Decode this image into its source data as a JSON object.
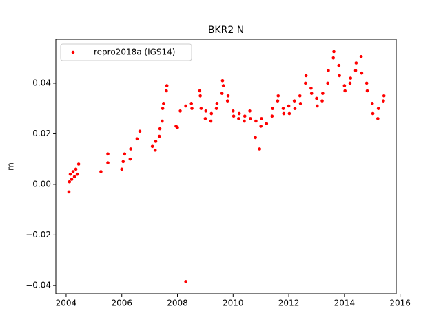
{
  "chart_data": {
    "type": "scatter",
    "title": "BKR2 N",
    "ylabel": "m",
    "x": [
      2004.1,
      2004.12,
      2004.15,
      2004.2,
      2004.25,
      2004.3,
      2004.35,
      2004.4,
      2004.45,
      2005.25,
      2005.5,
      2005.5,
      2006.0,
      2006.05,
      2006.1,
      2006.3,
      2006.32,
      2006.55,
      2006.65,
      2007.1,
      2007.2,
      2007.22,
      2007.35,
      2007.37,
      2007.45,
      2007.47,
      2007.5,
      2007.6,
      2007.62,
      2007.95,
      2008.0,
      2008.1,
      2008.3,
      2008.3,
      2008.5,
      2008.52,
      2008.8,
      2008.82,
      2008.85,
      2009.0,
      2009.02,
      2009.2,
      2009.22,
      2009.4,
      2009.42,
      2009.6,
      2009.62,
      2009.65,
      2009.8,
      2009.82,
      2010.0,
      2010.02,
      2010.2,
      2010.22,
      2010.4,
      2010.42,
      2010.6,
      2010.62,
      2010.8,
      2010.82,
      2010.95,
      2011.0,
      2011.02,
      2011.2,
      2011.4,
      2011.42,
      2011.6,
      2011.62,
      2011.8,
      2011.82,
      2012.0,
      2012.02,
      2012.2,
      2012.22,
      2012.4,
      2012.42,
      2012.6,
      2012.62,
      2012.8,
      2012.82,
      2013.0,
      2013.02,
      2013.2,
      2013.22,
      2013.4,
      2013.42,
      2013.6,
      2013.62,
      2013.8,
      2013.82,
      2014.0,
      2014.02,
      2014.2,
      2014.22,
      2014.4,
      2014.42,
      2014.6,
      2014.62,
      2014.8,
      2014.82,
      2015.0,
      2015.02,
      2015.2,
      2015.22,
      2015.4,
      2015.42
    ],
    "series": [
      {
        "name": "repro2018a (IGS14)",
        "color": "#ff0000",
        "values": [
          -0.003,
          0.001,
          0.004,
          0.002,
          0.005,
          0.003,
          0.006,
          0.004,
          0.008,
          0.005,
          0.0085,
          0.012,
          0.006,
          0.009,
          0.012,
          0.01,
          0.014,
          0.018,
          0.021,
          0.015,
          0.0135,
          0.017,
          0.019,
          0.022,
          0.025,
          0.03,
          0.032,
          0.037,
          0.039,
          0.023,
          0.0225,
          0.029,
          0.031,
          -0.0385,
          0.032,
          0.03,
          0.037,
          0.035,
          0.03,
          0.026,
          0.029,
          0.025,
          0.028,
          0.03,
          0.032,
          0.036,
          0.041,
          0.039,
          0.033,
          0.035,
          0.029,
          0.027,
          0.026,
          0.028,
          0.025,
          0.027,
          0.029,
          0.026,
          0.0185,
          0.025,
          0.014,
          0.023,
          0.026,
          0.024,
          0.027,
          0.03,
          0.033,
          0.035,
          0.03,
          0.028,
          0.031,
          0.028,
          0.033,
          0.03,
          0.035,
          0.032,
          0.04,
          0.043,
          0.038,
          0.036,
          0.034,
          0.031,
          0.033,
          0.036,
          0.04,
          0.045,
          0.05,
          0.0525,
          0.047,
          0.043,
          0.039,
          0.037,
          0.04,
          0.042,
          0.045,
          0.048,
          0.0505,
          0.044,
          0.04,
          0.037,
          0.032,
          0.028,
          0.026,
          0.03,
          0.033,
          0.035
        ]
      }
    ],
    "xlim": [
      2003.63,
      2015.86
    ],
    "ylim": [
      -0.0433,
      0.0574
    ],
    "xticks": [
      2004,
      2006,
      2008,
      2010,
      2012,
      2014,
      2016
    ],
    "yticks": [
      {
        "value": -0.04,
        "label": "−0.04"
      },
      {
        "value": -0.02,
        "label": "−0.02"
      },
      {
        "value": 0,
        "label": "0.00"
      },
      0.02,
      0.04
    ],
    "legend": "upper left"
  }
}
